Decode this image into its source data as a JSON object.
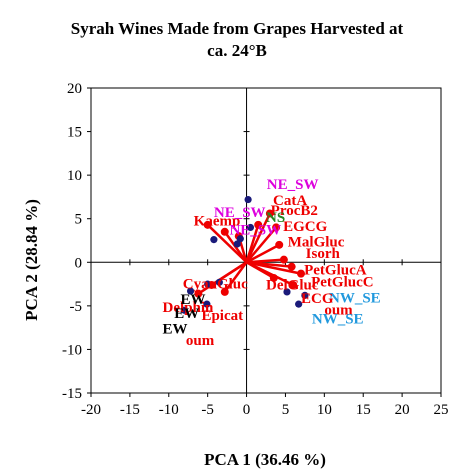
{
  "chart_data": {
    "type": "scatter",
    "title_lines": [
      "Syrah Wines Made from Grapes Harvested at",
      "ca. 24°B"
    ],
    "xlabel": "PCA 1 (36.46 %)",
    "ylabel": "PCA 2 (28.84 %)",
    "xlim": [
      -20,
      25
    ],
    "ylim": [
      -15,
      20
    ],
    "xticks": [
      -20,
      -15,
      -10,
      -5,
      0,
      5,
      10,
      15,
      20,
      25
    ],
    "yticks": [
      -15,
      -10,
      -5,
      0,
      5,
      10,
      15,
      20
    ],
    "grid": false,
    "colors": {
      "score": "#1a1a7a",
      "loading": "#ee0000",
      "ne_sw": "#dd00dd",
      "ns": "#228822",
      "nw_se": "#2299dd",
      "ew": "#000000"
    },
    "scores": [
      {
        "x": 0.2,
        "y": 7.2
      },
      {
        "x": 0.5,
        "y": 4.0
      },
      {
        "x": -0.8,
        "y": 2.7
      },
      {
        "x": -1.2,
        "y": 2.1
      },
      {
        "x": -4.2,
        "y": 2.6
      },
      {
        "x": -3.5,
        "y": -2.3
      },
      {
        "x": -5.0,
        "y": -2.5
      },
      {
        "x": -5.1,
        "y": -4.8
      },
      {
        "x": -7.2,
        "y": -3.3
      },
      {
        "x": -8.0,
        "y": -5.5
      },
      {
        "x": 5.2,
        "y": -3.4
      },
      {
        "x": 6.7,
        "y": -4.8
      },
      {
        "x": 7.5,
        "y": -3.8
      }
    ],
    "loadings": [
      {
        "x": 3.0,
        "y": 5.6
      },
      {
        "x": 3.8,
        "y": 4.0
      },
      {
        "x": 4.2,
        "y": 2.0
      },
      {
        "x": 4.8,
        "y": 0.3
      },
      {
        "x": 5.8,
        "y": -0.5
      },
      {
        "x": 7.0,
        "y": -1.3
      },
      {
        "x": 6.0,
        "y": -2.6
      },
      {
        "x": 3.5,
        "y": -1.8
      },
      {
        "x": -4.5,
        "y": -2.6
      },
      {
        "x": -6.2,
        "y": -3.6
      },
      {
        "x": -2.8,
        "y": -3.4
      },
      {
        "x": -5.0,
        "y": 4.3
      },
      {
        "x": -2.8,
        "y": 3.5
      },
      {
        "x": -1.0,
        "y": 3.0
      },
      {
        "x": 1.5,
        "y": 4.3
      }
    ],
    "labels": [
      {
        "text": "NE_SW",
        "x": 2.6,
        "y": 8.4,
        "group": "ne_sw"
      },
      {
        "text": "CatA",
        "x": 3.4,
        "y": 6.6,
        "group": "loading"
      },
      {
        "text": "ProcB2",
        "x": 3.1,
        "y": 5.4,
        "group": "loading"
      },
      {
        "text": "EGCG",
        "x": 4.7,
        "y": 3.6,
        "group": "loading"
      },
      {
        "text": "NS",
        "x": 2.5,
        "y": 4.6,
        "group": "ns"
      },
      {
        "text": "Kaemp",
        "x": -6.8,
        "y": 4.2,
        "group": "loading"
      },
      {
        "text": "NE_SW",
        "x": -4.2,
        "y": 5.2,
        "group": "ne_sw"
      },
      {
        "text": "NE_SW",
        "x": -2.2,
        "y": 3.2,
        "group": "ne_sw"
      },
      {
        "text": "MalGluc",
        "x": 5.3,
        "y": 1.8,
        "group": "loading"
      },
      {
        "text": "Isorh",
        "x": 7.6,
        "y": 0.5,
        "group": "loading"
      },
      {
        "text": "PetGlucA",
        "x": 7.4,
        "y": -1.4,
        "group": "loading"
      },
      {
        "text": "CyanGluc",
        "x": -8.2,
        "y": -3.0,
        "group": "loading"
      },
      {
        "text": "DelGluc",
        "x": 2.5,
        "y": -3.1,
        "group": "loading"
      },
      {
        "text": "PetGlucC",
        "x": 8.3,
        "y": -2.8,
        "group": "loading"
      },
      {
        "text": "NW_SE",
        "x": 10.6,
        "y": -4.6,
        "group": "nw_se"
      },
      {
        "text": "ECG",
        "x": 7.0,
        "y": -4.7,
        "group": "loading"
      },
      {
        "text": "oum",
        "x": 10.0,
        "y": -6.0,
        "group": "loading"
      },
      {
        "text": "NW_SE",
        "x": 8.4,
        "y": -7.0,
        "group": "nw_se"
      },
      {
        "text": "Delphin",
        "x": -10.8,
        "y": -5.7,
        "group": "loading"
      },
      {
        "text": "EW",
        "x": -8.5,
        "y": -4.8,
        "group": "ew"
      },
      {
        "text": "EW",
        "x": -9.3,
        "y": -6.4,
        "group": "ew"
      },
      {
        "text": "Epicat",
        "x": -5.8,
        "y": -6.6,
        "group": "loading"
      },
      {
        "text": "EW",
        "x": -10.8,
        "y": -8.2,
        "group": "ew"
      },
      {
        "text": "oum",
        "x": -7.8,
        "y": -9.5,
        "group": "loading"
      }
    ]
  }
}
